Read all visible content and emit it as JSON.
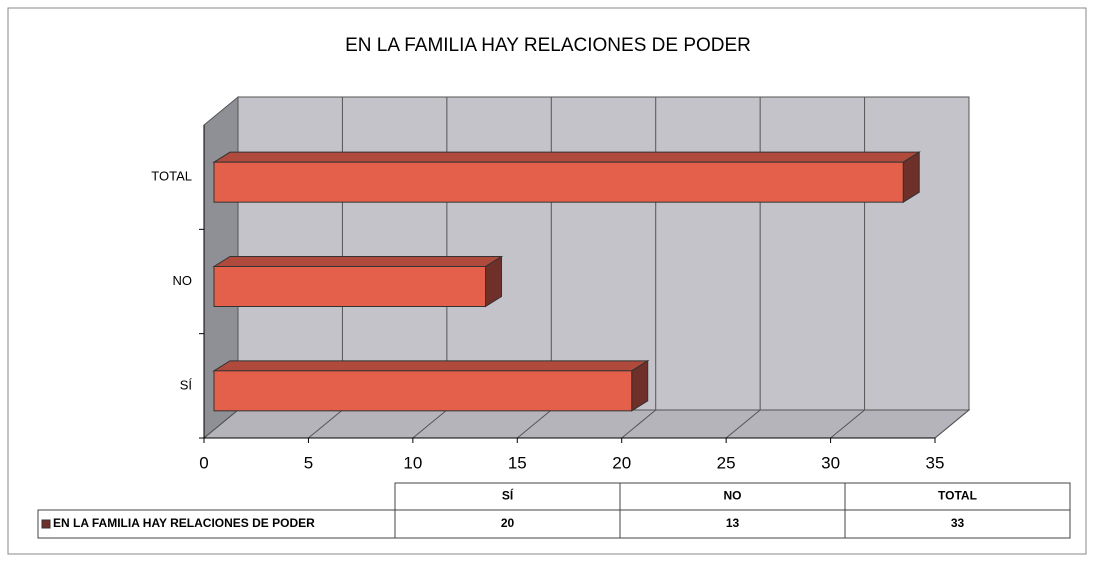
{
  "chart_data": {
    "type": "bar3d_horizontal",
    "title": "EN LA FAMILIA HAY RELACIONES DE PODER",
    "categories": [
      "SÍ",
      "NO",
      "TOTAL"
    ],
    "series": [
      {
        "name": "EN LA FAMILIA HAY RELACIONES DE PODER",
        "color": "#e5604a",
        "values": [
          20,
          13,
          33
        ]
      }
    ],
    "xlim": [
      0,
      35
    ],
    "xticks": [
      0,
      5,
      10,
      15,
      20,
      25,
      30,
      35
    ],
    "grid": true,
    "data_table": true
  }
}
